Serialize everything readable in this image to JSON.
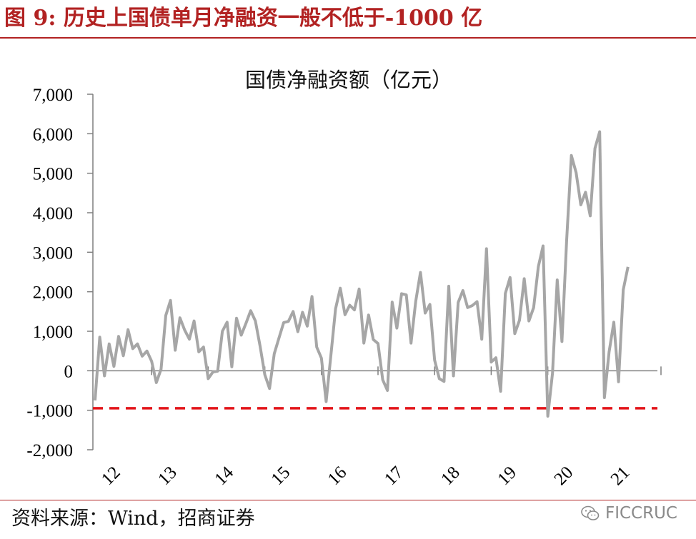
{
  "figure": {
    "title": "图 9:  历史上国债单月净融资一般不低于-1000 亿",
    "source": "资料来源：Wind，招商证券",
    "watermark": "FICCRUC",
    "watermark_icon": "wechat-icon"
  },
  "colors": {
    "title": "#B22222",
    "series_line": "#A6A6A6",
    "reference_line": "#E3161B",
    "axis": "#7F7F7F"
  },
  "chart_data": {
    "type": "line",
    "title": "国债净融资额（亿元）",
    "xlabel": "",
    "ylabel": "",
    "ylim": [
      -2000,
      7000
    ],
    "yticks": [
      -2000,
      -1000,
      0,
      1000,
      2000,
      3000,
      4000,
      5000,
      6000,
      7000
    ],
    "ytick_labels": [
      "-2,000",
      "-1,000",
      "0",
      "1,000",
      "2,000",
      "3,000",
      "4,000",
      "5,000",
      "6,000",
      "7,000"
    ],
    "xticks": [
      "12",
      "13",
      "14",
      "15",
      "16",
      "17",
      "18",
      "19",
      "20",
      "21"
    ],
    "x_start": "2012-01",
    "x_frequency": "monthly",
    "grid": false,
    "reference_line": {
      "y": -950,
      "style": "dashed"
    },
    "series": [
      {
        "values": [
          -750,
          850,
          -130,
          680,
          110,
          870,
          380,
          1040,
          560,
          680,
          370,
          500,
          240,
          -300,
          40,
          1400,
          1780,
          520,
          1340,
          1030,
          800,
          1260,
          480,
          600,
          -200,
          -30,
          -10,
          1000,
          1230,
          100,
          1330,
          900,
          1200,
          1520,
          1260,
          620,
          -100,
          -450,
          430,
          830,
          1220,
          1250,
          1500,
          990,
          1480,
          1130,
          1880,
          600,
          320,
          -780,
          380,
          1570,
          2090,
          1420,
          1660,
          1540,
          2070,
          700,
          1410,
          790,
          690,
          -230,
          -500,
          1740,
          1080,
          1950,
          1920,
          700,
          1760,
          2490,
          1460,
          1680,
          270,
          -200,
          -270,
          2140,
          -130,
          1730,
          2030,
          1600,
          1650,
          1750,
          800,
          3090,
          220,
          330,
          -520,
          1960,
          2360,
          940,
          1280,
          2330,
          1260,
          1600,
          2640,
          3160,
          -1150,
          -60,
          2300,
          740,
          3310,
          5450,
          5020,
          4200,
          4520,
          3920,
          5630,
          6050,
          -680,
          480,
          1230,
          -280,
          2050,
          2630
        ]
      }
    ]
  }
}
